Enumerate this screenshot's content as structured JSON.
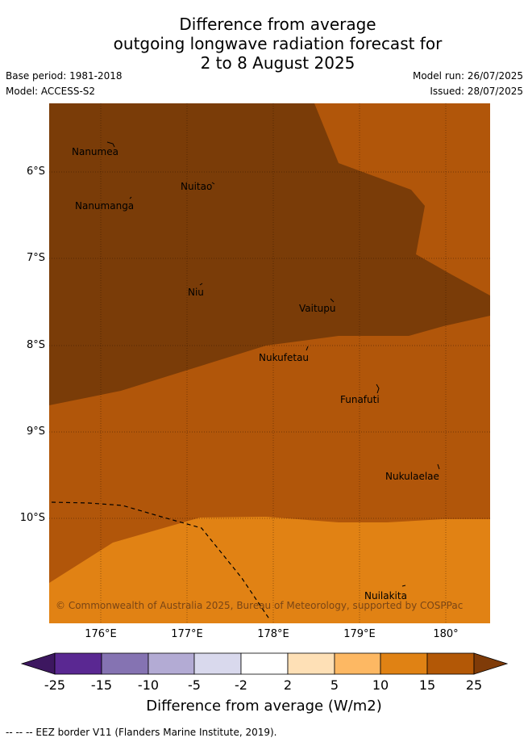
{
  "header": {
    "title_line1": "Difference from average",
    "title_line2": "outgoing longwave radiation forecast for",
    "title_line3": "2 to 8 August 2025",
    "base_period": "Base period: 1981-2018",
    "model": "Model: ACCESS-S2",
    "model_run": "Model run: 26/07/2025",
    "issued": "Issued: 28/07/2025"
  },
  "map": {
    "lat_labels": [
      "6°S",
      "7°S",
      "8°S",
      "9°S",
      "10°S"
    ],
    "lon_labels": [
      "176°E",
      "177°E",
      "178°E",
      "179°E",
      "180°"
    ],
    "islands": [
      "Nanumea",
      "Nuitao",
      "Nanumanga",
      "Niu",
      "Vaitupu",
      "Nukufetau",
      "Funafuti",
      "Nukulaelae",
      "Nuilakita"
    ],
    "copyright": "© Commonwealth of Australia 2025, Bureau of Meteorology, supported by COSPPac",
    "colors": {
      "band_15_25": "#b1560a",
      "band_10_15": "#e18214",
      "above_25": "#7a3c08"
    }
  },
  "colorbar": {
    "ticks": [
      "-25",
      "-15",
      "-10",
      "-5",
      "-2",
      "2",
      "5",
      "10",
      "15",
      "25"
    ],
    "colors": [
      "#3d1760",
      "#5a2892",
      "#8573b2",
      "#b3abd4",
      "#d9d9ed",
      "#ffffff",
      "#fee0b6",
      "#fdb863",
      "#e08214",
      "#b35806",
      "#7f3b08"
    ],
    "label": "Difference from average (W/m2)"
  },
  "footer": {
    "legend_text": "--  --  -- EEZ border V11 (Flanders Marine Institute, 2019)."
  }
}
